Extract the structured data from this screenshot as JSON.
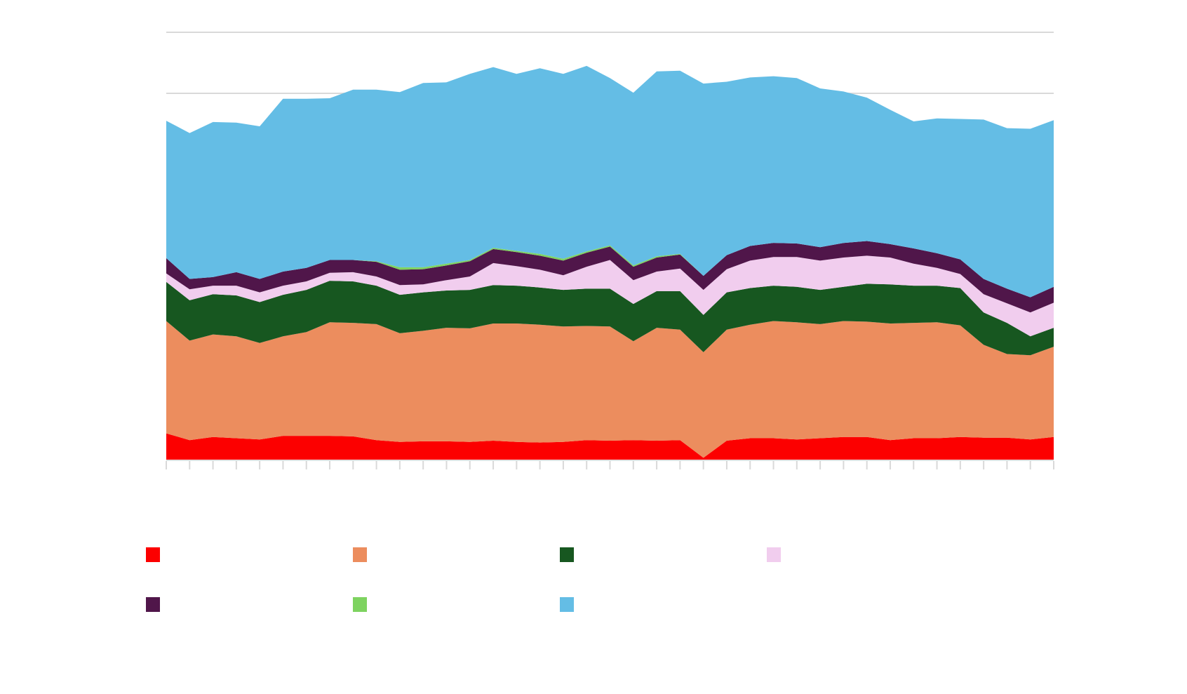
{
  "chart_data": {
    "type": "area",
    "stacked": true,
    "title": "",
    "xlabel": "",
    "ylabel": "",
    "ylim": [
      0,
      70
    ],
    "grid": true,
    "grid_step": 10,
    "point_count": 39,
    "legend_placement": "bottom",
    "series": [
      {
        "name": "",
        "color": "#fc0000",
        "values": [
          4.3,
          3.2,
          3.7,
          3.5,
          3.3,
          3.9,
          3.9,
          3.9,
          3.8,
          3.2,
          2.9,
          3.0,
          3.0,
          2.9,
          3.1,
          2.9,
          2.8,
          2.9,
          3.2,
          3.1,
          3.2,
          3.1,
          3.2,
          0.3,
          3.1,
          3.5,
          3.5,
          3.3,
          3.5,
          3.7,
          3.7,
          3.2,
          3.5,
          3.5,
          3.7,
          3.6,
          3.6,
          3.3,
          3.7
        ]
      },
      {
        "name": "",
        "color": "#ec8d5e",
        "values": [
          18.4,
          16.3,
          16.8,
          16.7,
          15.8,
          16.3,
          17.0,
          18.6,
          18.6,
          19.0,
          17.8,
          18.1,
          18.6,
          18.6,
          19.2,
          19.4,
          19.3,
          18.9,
          18.7,
          18.7,
          16.2,
          18.5,
          18.1,
          17.3,
          18.2,
          18.6,
          19.2,
          19.2,
          18.7,
          19.0,
          18.9,
          19.1,
          18.9,
          19.0,
          18.3,
          15.2,
          13.7,
          13.8,
          14.8
        ]
      },
      {
        "name": "",
        "color": "#175720",
        "values": [
          6.4,
          6.6,
          6.6,
          6.7,
          6.7,
          6.8,
          6.9,
          6.8,
          6.8,
          6.3,
          6.3,
          6.3,
          6.1,
          6.3,
          6.3,
          6.2,
          6.1,
          6.0,
          6.1,
          6.2,
          6.1,
          6.0,
          6.3,
          6.1,
          6.1,
          6.0,
          5.8,
          5.8,
          5.6,
          5.6,
          6.2,
          6.4,
          6.1,
          6.0,
          6.1,
          5.3,
          5.1,
          3.1,
          3.1
        ]
      },
      {
        "name": "",
        "color": "#f1cdee",
        "values": [
          1.4,
          1.8,
          1.4,
          1.6,
          1.6,
          1.5,
          1.4,
          1.3,
          1.5,
          1.5,
          1.6,
          1.3,
          1.7,
          2.2,
          3.6,
          3.2,
          2.9,
          2.4,
          3.6,
          4.7,
          3.9,
          3.2,
          3.7,
          4.1,
          3.8,
          4.5,
          4.7,
          4.9,
          4.8,
          4.8,
          4.6,
          4.4,
          3.6,
          2.9,
          2.3,
          3.0,
          3.2,
          3.9,
          4.1
        ]
      },
      {
        "name": "",
        "color": "#50164a",
        "values": [
          2.5,
          1.7,
          1.4,
          2.2,
          2.2,
          2.3,
          2.2,
          2.1,
          2.0,
          2.4,
          2.5,
          2.5,
          2.4,
          2.5,
          2.3,
          2.3,
          2.3,
          2.4,
          2.3,
          2.2,
          2.2,
          2.3,
          2.3,
          2.3,
          2.3,
          2.4,
          2.3,
          2.2,
          2.2,
          2.4,
          2.4,
          2.2,
          2.5,
          2.4,
          2.4,
          2.5,
          2.4,
          2.5,
          2.6
        ]
      },
      {
        "name": "",
        "color": "#7ed360",
        "values": [
          0,
          0,
          0,
          0,
          0,
          0,
          0,
          0,
          0,
          0.1,
          0.4,
          0.3,
          0.3,
          0.2,
          0.2,
          0.2,
          0.3,
          0.3,
          0.2,
          0.2,
          0.2,
          0.2,
          0.1,
          0,
          0,
          0,
          0,
          0,
          0,
          0,
          0,
          0,
          0,
          0,
          0,
          0,
          0,
          0,
          0
        ]
      },
      {
        "name": "",
        "color": "#64bde5",
        "values": [
          22.5,
          23.9,
          25.4,
          24.5,
          25.0,
          28.3,
          27.7,
          26.5,
          27.9,
          28.1,
          28.7,
          30.2,
          29.7,
          30.5,
          29.6,
          29.0,
          30.4,
          30.3,
          30.4,
          27.4,
          28.3,
          30.3,
          30.0,
          31.5,
          28.4,
          27.6,
          27.3,
          27.1,
          26.0,
          24.8,
          23.5,
          22.0,
          20.8,
          22.1,
          23.0,
          26.1,
          26.3,
          27.6,
          27.3
        ]
      }
    ]
  }
}
